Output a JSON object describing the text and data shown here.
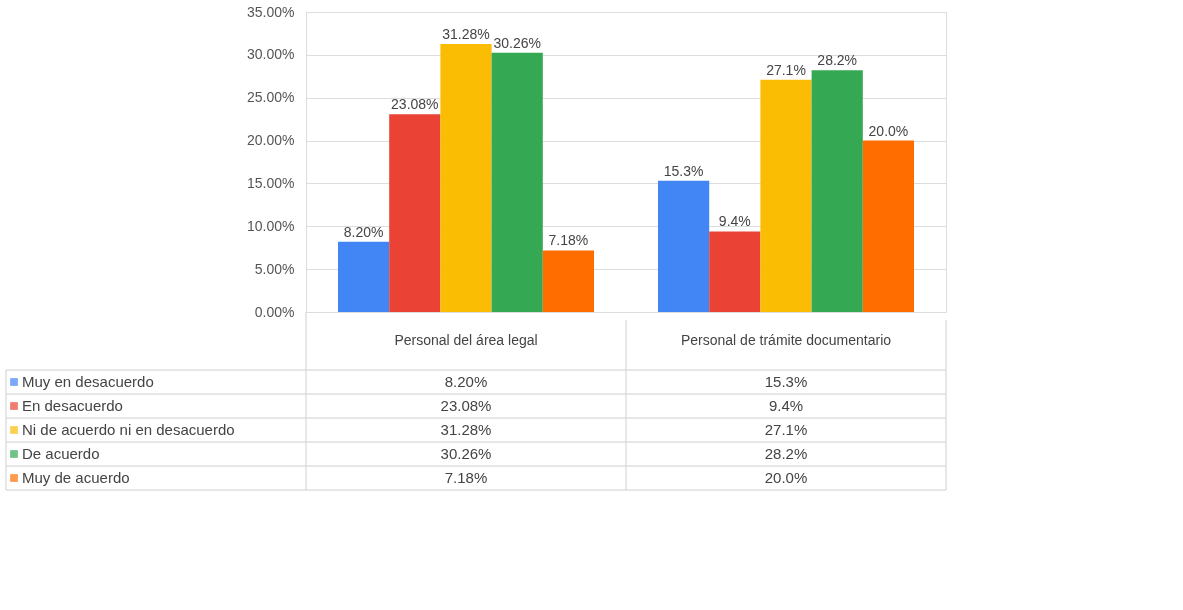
{
  "chart_data": {
    "type": "bar",
    "categories": [
      "Personal del área legal",
      "Personal de trámite documentario"
    ],
    "series": [
      {
        "name": "Muy en desacuerdo",
        "color": "#4285f4",
        "values": [
          8.2,
          15.3
        ],
        "value_labels": [
          "8.20%",
          "15.3%"
        ]
      },
      {
        "name": "En desacuerdo",
        "color": "#ea4335",
        "values": [
          23.08,
          9.4
        ],
        "value_labels": [
          "23.08%",
          "9.4%"
        ]
      },
      {
        "name": "Ni de acuerdo ni en desacuerdo",
        "color": "#fbbc04",
        "values": [
          31.28,
          27.1
        ],
        "value_labels": [
          "31.28%",
          "27.1%"
        ]
      },
      {
        "name": "De acuerdo",
        "color": "#34a853",
        "values": [
          30.26,
          28.2
        ],
        "value_labels": [
          "30.26%",
          "28.2%"
        ]
      },
      {
        "name": "Muy de acuerdo",
        "color": "#ff6d01",
        "values": [
          7.18,
          20.0
        ],
        "value_labels": [
          "7.18%",
          "20.0%"
        ]
      }
    ],
    "ylim": [
      0,
      35
    ],
    "yticks": [
      {
        "value": 0,
        "label": "0.00%"
      },
      {
        "value": 5,
        "label": "5.00%"
      },
      {
        "value": 10,
        "label": "10.00%"
      },
      {
        "value": 15,
        "label": "15.00%"
      },
      {
        "value": 20,
        "label": "20.00%"
      },
      {
        "value": 25,
        "label": "25.00%"
      },
      {
        "value": 30,
        "label": "30.00%"
      },
      {
        "value": 35,
        "label": "35.00%"
      }
    ],
    "grid": "y",
    "legend": "bottom"
  }
}
